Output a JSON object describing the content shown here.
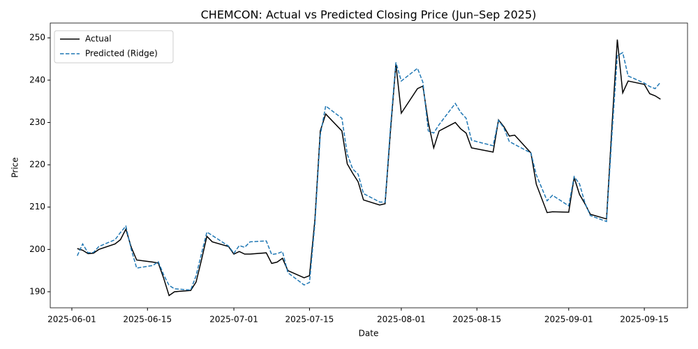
{
  "chart_data": {
    "type": "line",
    "title": "CHEMCON: Actual vs Predicted Closing Price (Jun–Sep 2025)",
    "x_label": "Date",
    "y_label": "Price",
    "x": [
      "2025-06-02",
      "2025-06-03",
      "2025-06-04",
      "2025-06-05",
      "2025-06-06",
      "2025-06-09",
      "2025-06-10",
      "2025-06-11",
      "2025-06-12",
      "2025-06-13",
      "2025-06-16",
      "2025-06-17",
      "2025-06-18",
      "2025-06-19",
      "2025-06-20",
      "2025-06-23",
      "2025-06-24",
      "2025-06-25",
      "2025-06-26",
      "2025-06-27",
      "2025-06-30",
      "2025-07-01",
      "2025-07-02",
      "2025-07-03",
      "2025-07-04",
      "2025-07-07",
      "2025-07-08",
      "2025-07-09",
      "2025-07-10",
      "2025-07-11",
      "2025-07-14",
      "2025-07-15",
      "2025-07-16",
      "2025-07-17",
      "2025-07-18",
      "2025-07-21",
      "2025-07-22",
      "2025-07-23",
      "2025-07-24",
      "2025-07-25",
      "2025-07-28",
      "2025-07-29",
      "2025-07-30",
      "2025-07-31",
      "2025-08-01",
      "2025-08-04",
      "2025-08-05",
      "2025-08-06",
      "2025-08-07",
      "2025-08-08",
      "2025-08-11",
      "2025-08-12",
      "2025-08-13",
      "2025-08-14",
      "2025-08-18",
      "2025-08-19",
      "2025-08-20",
      "2025-08-21",
      "2025-08-22",
      "2025-08-25",
      "2025-08-26",
      "2025-08-28",
      "2025-08-29",
      "2025-09-01",
      "2025-09-02",
      "2025-09-03",
      "2025-09-04",
      "2025-09-05",
      "2025-09-08",
      "2025-09-09",
      "2025-09-10",
      "2025-09-11",
      "2025-09-12",
      "2025-09-15",
      "2025-09-16",
      "2025-09-17",
      "2025-09-18"
    ],
    "series": [
      {
        "name": "Actual",
        "color": "#000000",
        "dash": false,
        "values": [
          200.2,
          199.8,
          199.0,
          199.1,
          200.0,
          201.3,
          202.3,
          204.8,
          200.5,
          197.5,
          197.0,
          196.8,
          193.2,
          189.1,
          190.0,
          190.3,
          192.3,
          197.5,
          203.1,
          201.8,
          200.7,
          198.9,
          199.5,
          198.9,
          198.9,
          199.2,
          196.7,
          197.0,
          197.9,
          195.0,
          193.3,
          193.8,
          207.0,
          228.0,
          232.0,
          228.0,
          220.2,
          218.0,
          216.0,
          211.7,
          210.5,
          210.8,
          228.0,
          243.8,
          232.2,
          238.0,
          238.6,
          230.0,
          224.0,
          228.0,
          230.0,
          228.5,
          227.5,
          224.0,
          223.0,
          230.6,
          229.0,
          226.8,
          227.0,
          222.8,
          215.4,
          208.7,
          208.9,
          208.8,
          217.0,
          213.0,
          210.8,
          208.3,
          207.2,
          229.0,
          249.6,
          237.0,
          239.8,
          239.0,
          236.8,
          236.3,
          235.5
        ]
      },
      {
        "name": "Predicted (Ridge)",
        "color": "#1f77b4",
        "dash": true,
        "values": [
          198.5,
          201.3,
          199.2,
          199.3,
          200.7,
          202.3,
          204.0,
          205.5,
          200.0,
          195.6,
          196.2,
          197.1,
          194.0,
          191.5,
          190.7,
          190.4,
          193.8,
          199.0,
          204.1,
          203.3,
          200.8,
          199.1,
          200.9,
          200.5,
          201.8,
          202.0,
          198.8,
          199.0,
          199.5,
          194.5,
          191.6,
          192.2,
          206.0,
          227.0,
          233.9,
          231.0,
          222.5,
          219.0,
          217.8,
          213.2,
          211.2,
          211.2,
          229.0,
          244.2,
          239.8,
          242.8,
          239.5,
          228.0,
          227.5,
          229.5,
          234.5,
          232.4,
          231.0,
          225.8,
          224.5,
          230.5,
          228.7,
          225.5,
          224.8,
          222.8,
          217.6,
          211.5,
          212.8,
          210.3,
          217.2,
          215.5,
          211.0,
          208.0,
          206.6,
          227.0,
          245.8,
          246.5,
          241.0,
          239.3,
          238.5,
          238.0,
          239.5
        ]
      }
    ],
    "xlim": [
      "2025-05-28",
      "2025-09-23"
    ],
    "xticks": [
      "2025-06-01",
      "2025-06-15",
      "2025-07-01",
      "2025-07-15",
      "2025-08-01",
      "2025-08-15",
      "2025-09-01",
      "2025-09-15"
    ],
    "ylim": [
      186.2,
      253.5
    ],
    "yticks": [
      190,
      200,
      210,
      220,
      230,
      240,
      250
    ],
    "legend": "upper left",
    "grid": false
  }
}
